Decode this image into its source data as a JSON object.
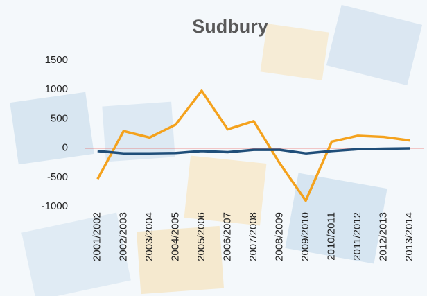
{
  "chart_data": {
    "type": "line",
    "title": "Sudbury",
    "categories": [
      "2001/2002",
      "2002/2003",
      "2003/2004",
      "2004/2005",
      "2005/2006",
      "2006/2007",
      "2007/2008",
      "2008/2009",
      "2009/2010",
      "2010/2011",
      "2011/2012",
      "2012/2013",
      "2013/2014"
    ],
    "series": [
      {
        "color": "#f4a21d",
        "values": [
          -530,
          290,
          180,
          400,
          980,
          320,
          460,
          -260,
          -900,
          110,
          210,
          190,
          130
        ]
      },
      {
        "color": "#1f4e79",
        "values": [
          -50,
          -90,
          -90,
          -85,
          -50,
          -70,
          -30,
          -30,
          -90,
          -50,
          -20,
          -10,
          -5
        ]
      }
    ],
    "ylim": [
      -1000,
      1500
    ],
    "yticks": [
      -1000,
      -500,
      0,
      500,
      1000,
      1500
    ],
    "reference_line": {
      "value": 0,
      "color": "#e8332b"
    }
  }
}
